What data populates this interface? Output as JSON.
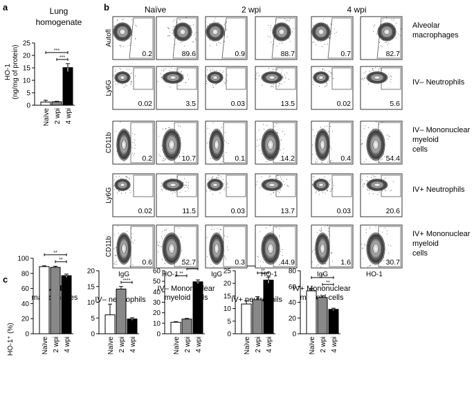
{
  "panel_a": {
    "letter": "a",
    "title_lines": [
      "Lung",
      "homogenate"
    ],
    "ylabel_lines": [
      "HO-1",
      "(ng/mg of protein)"
    ],
    "sig": [
      "***",
      "***"
    ]
  },
  "panel_b": {
    "letter": "b",
    "columns": [
      "Naïve",
      "2 wpi",
      "4 wpi"
    ],
    "rows": [
      {
        "yaxis": "Autofl",
        "label_lines": [
          "Alveolar",
          "macrophages"
        ],
        "values": [
          "0.2",
          "89.6",
          "0.9",
          "88.7",
          "0.7",
          "82.7"
        ],
        "shape": "blob"
      },
      {
        "yaxis": "Ly6G",
        "label_lines": [
          "IV– Neutrophils"
        ],
        "values": [
          "0.02",
          "3.5",
          "0.03",
          "13.5",
          "0.02",
          "5.6"
        ],
        "shape": "blob"
      },
      {
        "yaxis": "CD11b",
        "label_lines": [
          "IV– Mononuclear",
          "myeloid",
          "cells"
        ],
        "values": [
          "0.2",
          "10.7",
          "0.1",
          "14.2",
          "0.4",
          "54.4"
        ],
        "shape": "tall"
      },
      {
        "yaxis": "Ly6G",
        "label_lines": [
          "IV+ Neutrophils"
        ],
        "values": [
          "0.02",
          "11.5",
          "0.03",
          "13.7",
          "0.03",
          "20.6"
        ],
        "shape": "blob"
      },
      {
        "yaxis": "CD11b",
        "label_lines": [
          "IV+ Mononuclear",
          "myeloid",
          "cells"
        ],
        "values": [
          "0.6",
          "52.7",
          "0.3",
          "44.9",
          "1.6",
          "30.7"
        ],
        "shape": "tall"
      }
    ],
    "xaxis": [
      "IgG",
      "HO-1"
    ]
  },
  "panel_c": {
    "letter": "c",
    "ylabel": "HO-1⁺ (%)"
  },
  "chart_data": [
    {
      "type": "bar",
      "panel": "a",
      "categories": [
        "Naïve",
        "2 wpi",
        "4 wpi"
      ],
      "values": [
        1.3,
        1.4,
        15.1
      ],
      "errors": [
        0.7,
        0.2,
        1.6
      ],
      "title": "Lung homogenate",
      "ylabel": "HO-1 (ng/mg of protein)",
      "ylim": [
        0,
        25
      ],
      "yticks": [
        0,
        5,
        10,
        15,
        20,
        25
      ],
      "fills": [
        "#ffffff",
        "#888888",
        "#000000"
      ],
      "significance": [
        {
          "from": 0,
          "to": 2,
          "label": "***"
        },
        {
          "from": 1,
          "to": 2,
          "label": "***"
        }
      ]
    },
    {
      "type": "bar",
      "panel": "c",
      "categories": [
        "Naïve",
        "2 wpi",
        "4 wpi"
      ],
      "values": [
        89,
        88,
        77
      ],
      "errors": [
        1,
        1.5,
        2
      ],
      "title": "Alveolar macrophages",
      "ylim": [
        0,
        100
      ],
      "yticks": [
        0,
        20,
        40,
        60,
        80,
        100
      ],
      "fills": [
        "#ffffff",
        "#888888",
        "#000000"
      ],
      "significance": [
        {
          "from": 0,
          "to": 2,
          "label": "**"
        },
        {
          "from": 1,
          "to": 2,
          "label": "**"
        }
      ]
    },
    {
      "type": "bar",
      "panel": "c",
      "categories": [
        "Naïve",
        "2 wpi",
        "4 wpi"
      ],
      "values": [
        6,
        14.2,
        4.7
      ],
      "errors": [
        3.4,
        0.8,
        0.4
      ],
      "title": "IV– neutrophils",
      "ylim": [
        0,
        20
      ],
      "yticks": [
        0,
        5,
        10,
        15,
        20
      ],
      "fills": [
        "#ffffff",
        "#888888",
        "#000000"
      ],
      "significance": [
        {
          "from": 1,
          "to": 2,
          "label": "****"
        }
      ]
    },
    {
      "type": "bar",
      "panel": "c",
      "categories": [
        "Naïve",
        "2 wpi",
        "4 wpi"
      ],
      "values": [
        11,
        14,
        49.5
      ],
      "errors": [
        0.5,
        0.6,
        1.8
      ],
      "title": "IV– Mononuclear myeloid cells",
      "ylim": [
        0,
        60
      ],
      "yticks": [
        0,
        10,
        20,
        30,
        40,
        50,
        60
      ],
      "fills": [
        "#ffffff",
        "#888888",
        "#000000"
      ],
      "significance": [
        {
          "from": 0,
          "to": 2,
          "label": "****"
        },
        {
          "from": 0,
          "to": 1,
          "label": "**"
        },
        {
          "from": 1,
          "to": 2,
          "label": "****"
        }
      ]
    },
    {
      "type": "bar",
      "panel": "c",
      "categories": [
        "Naïve",
        "2 wpi",
        "4 wpi"
      ],
      "values": [
        11.8,
        13.5,
        21.3
      ],
      "errors": [
        1.3,
        1.2,
        1.2
      ],
      "title": "IV+ neutrophils",
      "ylim": [
        0,
        25
      ],
      "yticks": [
        0,
        5,
        10,
        15,
        20,
        25
      ],
      "fills": [
        "#ffffff",
        "#888888",
        "#000000"
      ],
      "significance": [
        {
          "from": 0,
          "to": 2,
          "label": "**"
        },
        {
          "from": 1,
          "to": 2,
          "label": "**"
        }
      ]
    },
    {
      "type": "bar",
      "panel": "c",
      "categories": [
        "Naïve",
        "2 wpi",
        "4 wpi"
      ],
      "values": [
        54.5,
        46,
        31
      ],
      "errors": [
        2.8,
        2.2,
        1.4
      ],
      "title": "IV+ Mononuclear myeloid cells",
      "ylim": [
        0,
        80
      ],
      "yticks": [
        0,
        20,
        40,
        60,
        80
      ],
      "fills": [
        "#ffffff",
        "#888888",
        "#000000"
      ],
      "significance": [
        {
          "from": 0,
          "to": 2,
          "label": "**"
        },
        {
          "from": 1,
          "to": 2,
          "label": "**"
        }
      ]
    }
  ]
}
